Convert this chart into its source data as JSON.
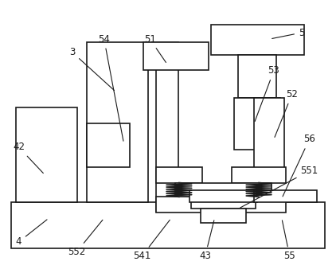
{
  "background_color": "#ffffff",
  "line_color": "#1a1a1a",
  "line_width": 1.2,
  "fig_width": 4.22,
  "fig_height": 3.43
}
